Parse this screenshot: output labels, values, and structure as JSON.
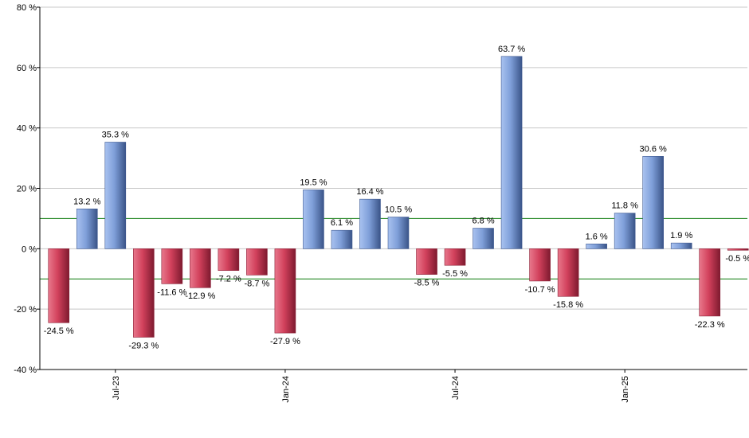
{
  "chart_data": {
    "type": "bar",
    "title": "",
    "xlabel": "",
    "ylabel": "",
    "ylim": [
      -40,
      80
    ],
    "y_ticks": [
      -40,
      -20,
      0,
      20,
      40,
      60,
      80
    ],
    "y_tick_suffix": " %",
    "grid": true,
    "reference_lines": [
      10,
      -10
    ],
    "x_tick_labels": [
      {
        "label": "Jul-23",
        "index": 2
      },
      {
        "label": "Jan-24",
        "index": 8
      },
      {
        "label": "Jul-24",
        "index": 14
      },
      {
        "label": "Jan-25",
        "index": 20
      }
    ],
    "values": [
      -24.5,
      13.2,
      35.3,
      -29.3,
      -11.6,
      -12.9,
      -7.2,
      -8.7,
      -27.9,
      19.5,
      6.1,
      16.4,
      10.5,
      -8.5,
      -5.5,
      6.8,
      63.7,
      -10.7,
      -15.8,
      1.6,
      11.8,
      30.6,
      1.9,
      -22.3,
      -0.5
    ],
    "data_labels": [
      "-24.5 %",
      "13.2 %",
      "35.3 %",
      "-29.3 %",
      "-11.6 %",
      "-12.9 %",
      "-7.2 %",
      "-8.7 %",
      "-27.9 %",
      "19.5 %",
      "6.1 %",
      "16.4 %",
      "10.5 %",
      "-8.5 %",
      "-5.5 %",
      "6.8 %",
      "63.7 %",
      "-10.7 %",
      "-15.8 %",
      "1.6 %",
      "11.8 %",
      "30.6 %",
      "1.9 %",
      "-22.3 %",
      "-0.5 %"
    ],
    "colors": {
      "positive": "#7f9fd9",
      "positive_dark": "#3f5a92",
      "negative": "#d2415c",
      "negative_dark": "#8a1c33",
      "grid": "#c8c8c8",
      "reference": "#0a7a0a",
      "axis": "#000000"
    }
  }
}
